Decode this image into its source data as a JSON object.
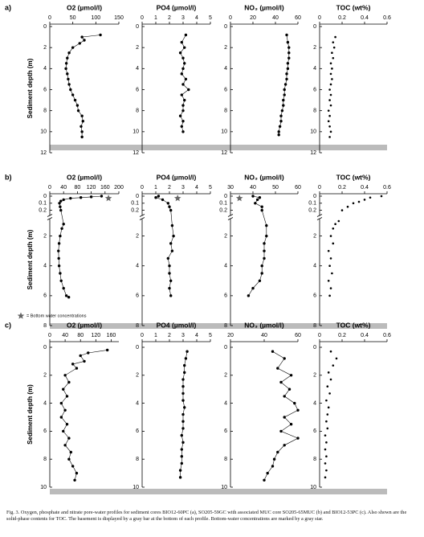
{
  "chart_data": [
    {
      "type": "scatter",
      "title": "O2 (µmol/l)",
      "row_label": "a)",
      "ylabel": "Sediment depth (m)",
      "line": true,
      "xlim": [
        0,
        150
      ],
      "xticks": [
        0,
        50,
        100,
        150
      ],
      "ylim": [
        0,
        12
      ],
      "yticks": [
        0,
        2,
        4,
        6,
        8,
        10,
        12
      ],
      "y": [
        0.8,
        1,
        1.3,
        1.6,
        2,
        2.5,
        3,
        3.5,
        4,
        4.5,
        5,
        5.5,
        6,
        6.5,
        7,
        7.5,
        8,
        8.5,
        9,
        9.5,
        10,
        10.5
      ],
      "x": [
        110,
        70,
        75,
        65,
        50,
        42,
        38,
        36,
        35,
        38,
        40,
        42,
        45,
        50,
        55,
        60,
        62,
        70,
        72,
        68,
        70,
        70
      ]
    },
    {
      "type": "scatter",
      "title": "PO4 (µmol/l)",
      "line": true,
      "xlim": [
        0,
        5
      ],
      "xticks": [
        0,
        1,
        2,
        3,
        4,
        5
      ],
      "ylim": [
        0,
        12
      ],
      "yticks": [
        0,
        2,
        4,
        6,
        8,
        10,
        12
      ],
      "y": [
        0.8,
        1.5,
        2,
        2.5,
        3,
        3.5,
        4,
        4.5,
        5,
        5.5,
        6,
        6.5,
        7,
        7.5,
        8,
        8.5,
        9,
        9.5,
        10
      ],
      "x": [
        3.2,
        2.9,
        3.1,
        2.8,
        3.0,
        3.1,
        3.0,
        2.9,
        3.2,
        3.0,
        3.4,
        2.9,
        3.1,
        3.0,
        3.0,
        2.8,
        3.0,
        2.9,
        3.0
      ]
    },
    {
      "type": "scatter",
      "title": "NO₃ (µmol/l)",
      "line": true,
      "xlim": [
        0,
        60
      ],
      "xticks": [
        0,
        20,
        40,
        60
      ],
      "ylim": [
        0,
        12
      ],
      "yticks": [
        0,
        2,
        4,
        6,
        8,
        10,
        12
      ],
      "y": [
        0.8,
        1.5,
        2,
        2.5,
        3,
        3.5,
        4,
        4.5,
        5,
        5.5,
        6,
        6.5,
        7,
        7.5,
        8,
        8.5,
        9,
        9.5,
        10,
        10.3
      ],
      "x": [
        50,
        51,
        52,
        52,
        52,
        51,
        51,
        50,
        50,
        49,
        48,
        48,
        47,
        47,
        46,
        45,
        45,
        44,
        43,
        43
      ]
    },
    {
      "type": "scatter",
      "title": "TOC (wt%)",
      "line": false,
      "xlim": [
        0,
        0.6
      ],
      "xticks": [
        0,
        0.2,
        0.4,
        0.6
      ],
      "ylim": [
        0,
        12
      ],
      "yticks": [
        0,
        2,
        4,
        6,
        8,
        10,
        12
      ],
      "y": [
        1,
        1.5,
        2,
        2.5,
        3,
        3.5,
        4,
        4.5,
        5,
        5.5,
        6,
        6.5,
        7,
        7.5,
        8,
        8.5,
        9,
        9.5,
        10,
        10.5
      ],
      "x": [
        0.14,
        0.12,
        0.13,
        0.11,
        0.12,
        0.1,
        0.11,
        0.1,
        0.11,
        0.1,
        0.09,
        0.1,
        0.09,
        0.1,
        0.08,
        0.09,
        0.08,
        0.09,
        0.1,
        0.09
      ]
    },
    {
      "type": "scatter",
      "title": "O2 (µmol/l)",
      "row_label": "b)",
      "ylabel": "Sediment depth (m)",
      "line": true,
      "note": "= Bottom water concentrations",
      "xlim": [
        0,
        200
      ],
      "xticks": [
        0,
        40,
        80,
        120,
        160,
        200
      ],
      "ylim": [
        0,
        8
      ],
      "ybreak": [
        0.25,
        1
      ],
      "yticks": [
        0,
        0.1,
        0.2,
        2,
        4,
        6,
        8
      ],
      "y": [
        0,
        0.01,
        0.02,
        0.03,
        0.05,
        0.07,
        0.1,
        0.15,
        0.2,
        1.2,
        1.5,
        2,
        2.5,
        3,
        3.5,
        4,
        4.5,
        5,
        5.5,
        6,
        6.1
      ],
      "x": [
        150,
        120,
        90,
        60,
        40,
        32,
        28,
        30,
        32,
        40,
        35,
        30,
        27,
        25,
        26,
        27,
        30,
        33,
        40,
        48,
        55
      ],
      "bottom_water": {
        "x": 170,
        "y": 0.03
      }
    },
    {
      "type": "scatter",
      "title": "PO4 (µmol/l)",
      "line": true,
      "xlim": [
        0,
        5
      ],
      "xticks": [
        0,
        1,
        2,
        3,
        4,
        5
      ],
      "ylim": [
        0,
        8
      ],
      "ybreak": [
        0.25,
        1
      ],
      "yticks": [
        0,
        0.1,
        0.2,
        2,
        4,
        6,
        8
      ],
      "y": [
        0,
        0.02,
        0.05,
        0.1,
        0.15,
        0.2,
        1.3,
        2,
        2.5,
        3,
        3.5,
        4,
        4.5,
        5,
        5.5,
        6
      ],
      "x": [
        1.2,
        1.0,
        1.5,
        1.9,
        2.0,
        2.1,
        2.2,
        2.3,
        2.1,
        2.2,
        1.9,
        2.0,
        2.0,
        2.1,
        2.0,
        2.1
      ],
      "bottom_water": {
        "x": 2.6,
        "y": 0.03
      }
    },
    {
      "type": "scatter",
      "title": "NO₃ (µmol/l)",
      "line": true,
      "xlim": [
        30,
        60
      ],
      "xticks": [
        30,
        40,
        50,
        60
      ],
      "ylim": [
        0,
        8
      ],
      "ybreak": [
        0.25,
        1
      ],
      "yticks": [
        0,
        0.1,
        0.2,
        2,
        4,
        6,
        8
      ],
      "y": [
        0,
        0.02,
        0.05,
        0.1,
        0.15,
        0.2,
        1.3,
        2,
        2.5,
        3,
        3.5,
        4,
        4.5,
        5,
        5.5,
        6
      ],
      "x": [
        40,
        43,
        42,
        41,
        44,
        44,
        46,
        46,
        45,
        45,
        45,
        44,
        44,
        43,
        40,
        38
      ],
      "bottom_water": {
        "x": 34,
        "y": 0.03
      }
    },
    {
      "type": "scatter",
      "title": "TOC (wt%)",
      "line": false,
      "xlim": [
        0,
        0.6
      ],
      "xticks": [
        0,
        0.2,
        0.4,
        0.6
      ],
      "ylim": [
        0,
        8
      ],
      "ybreak": [
        0.25,
        1
      ],
      "yticks": [
        0,
        0.1,
        0.2,
        2,
        4,
        6,
        8
      ],
      "y": [
        0,
        0.02,
        0.05,
        0.08,
        0.1,
        0.15,
        0.2,
        1.0,
        1.2,
        1.5,
        2,
        2.5,
        3,
        3.5,
        4,
        4.5,
        5,
        5.5,
        6
      ],
      "x": [
        0.55,
        0.45,
        0.4,
        0.35,
        0.3,
        0.25,
        0.2,
        0.17,
        0.14,
        0.12,
        0.1,
        0.12,
        0.08,
        0.1,
        0.09,
        0.11,
        0.08,
        0.1,
        0.09
      ]
    },
    {
      "type": "scatter",
      "title": "O2 (µmol/l)",
      "row_label": "c)",
      "ylabel": "Sediment depth (m)",
      "line": true,
      "xlim": [
        0,
        180
      ],
      "xticks": [
        0,
        40,
        80,
        120,
        160
      ],
      "ylim": [
        0,
        10
      ],
      "yticks": [
        0,
        2,
        4,
        6,
        8,
        10
      ],
      "y": [
        0.2,
        0.4,
        0.6,
        1,
        1.2,
        1.5,
        2,
        2.5,
        3,
        3.5,
        4,
        4.5,
        5,
        5.5,
        6,
        6.5,
        7,
        7.5,
        8,
        8.5,
        9,
        9.5
      ],
      "x": [
        150,
        100,
        80,
        90,
        60,
        70,
        40,
        50,
        35,
        45,
        30,
        40,
        30,
        45,
        35,
        50,
        40,
        55,
        50,
        60,
        70,
        65
      ]
    },
    {
      "type": "scatter",
      "title": "PO4 (µmol/l)",
      "line": true,
      "xlim": [
        0,
        5
      ],
      "xticks": [
        0,
        1,
        2,
        3,
        4,
        5
      ],
      "ylim": [
        0,
        10
      ],
      "yticks": [
        0,
        2,
        4,
        6,
        8,
        10
      ],
      "y": [
        0.3,
        0.8,
        1.3,
        1.8,
        2.3,
        2.8,
        3.3,
        3.8,
        4.3,
        4.8,
        5.3,
        5.8,
        6.3,
        6.8,
        7.3,
        7.8,
        8.3,
        8.8,
        9.3
      ],
      "x": [
        3.3,
        3.2,
        3.1,
        3.1,
        3.0,
        3.0,
        3.0,
        3.0,
        3.1,
        3.0,
        3.0,
        3.0,
        2.9,
        3.0,
        2.9,
        2.9,
        2.9,
        2.8,
        2.8
      ]
    },
    {
      "type": "scatter",
      "title": "NO₃ (µmol/l)",
      "line": true,
      "xlim": [
        20,
        60
      ],
      "xticks": [
        20,
        40,
        60
      ],
      "ylim": [
        0,
        10
      ],
      "yticks": [
        0,
        2,
        4,
        6,
        8,
        10
      ],
      "y": [
        0.3,
        0.8,
        1.5,
        2,
        2.5,
        3,
        3.5,
        4,
        4.5,
        5,
        5.5,
        6,
        6.5,
        7,
        7.5,
        8,
        8.5,
        9,
        9.5
      ],
      "x": [
        45,
        52,
        48,
        56,
        50,
        55,
        52,
        58,
        60,
        52,
        56,
        50,
        60,
        52,
        48,
        46,
        45,
        42,
        40
      ]
    },
    {
      "type": "scatter",
      "title": "TOC (wt%)",
      "line": false,
      "xlim": [
        0,
        0.6
      ],
      "xticks": [
        0,
        0.2,
        0.4,
        0.6
      ],
      "ylim": [
        0,
        10
      ],
      "yticks": [
        0,
        2,
        4,
        6,
        8,
        10
      ],
      "y": [
        0.3,
        0.8,
        1.3,
        1.8,
        2.3,
        2.8,
        3.3,
        3.8,
        4.3,
        4.8,
        5.3,
        5.8,
        6.3,
        6.8,
        7.3,
        7.8,
        8.3,
        8.8,
        9.3
      ],
      "x": [
        0.1,
        0.15,
        0.12,
        0.08,
        0.1,
        0.07,
        0.09,
        0.06,
        0.08,
        0.07,
        0.06,
        0.07,
        0.05,
        0.06,
        0.05,
        0.06,
        0.05,
        0.06,
        0.05
      ]
    }
  ],
  "caption": "Fig. 3. Oxygen, phosphate and nitrate pore-water profiles for sediment cores BIO12-60PC (a), SO205-59GC with associated MUC core SO205-65MUC (b) and BIO12-53PC (c). Also shown are the solid-phase contents for TOC. The basement is displayed by a gray bar at the bottom of each profile. Bottom-water concentrations are marked by a gray star."
}
